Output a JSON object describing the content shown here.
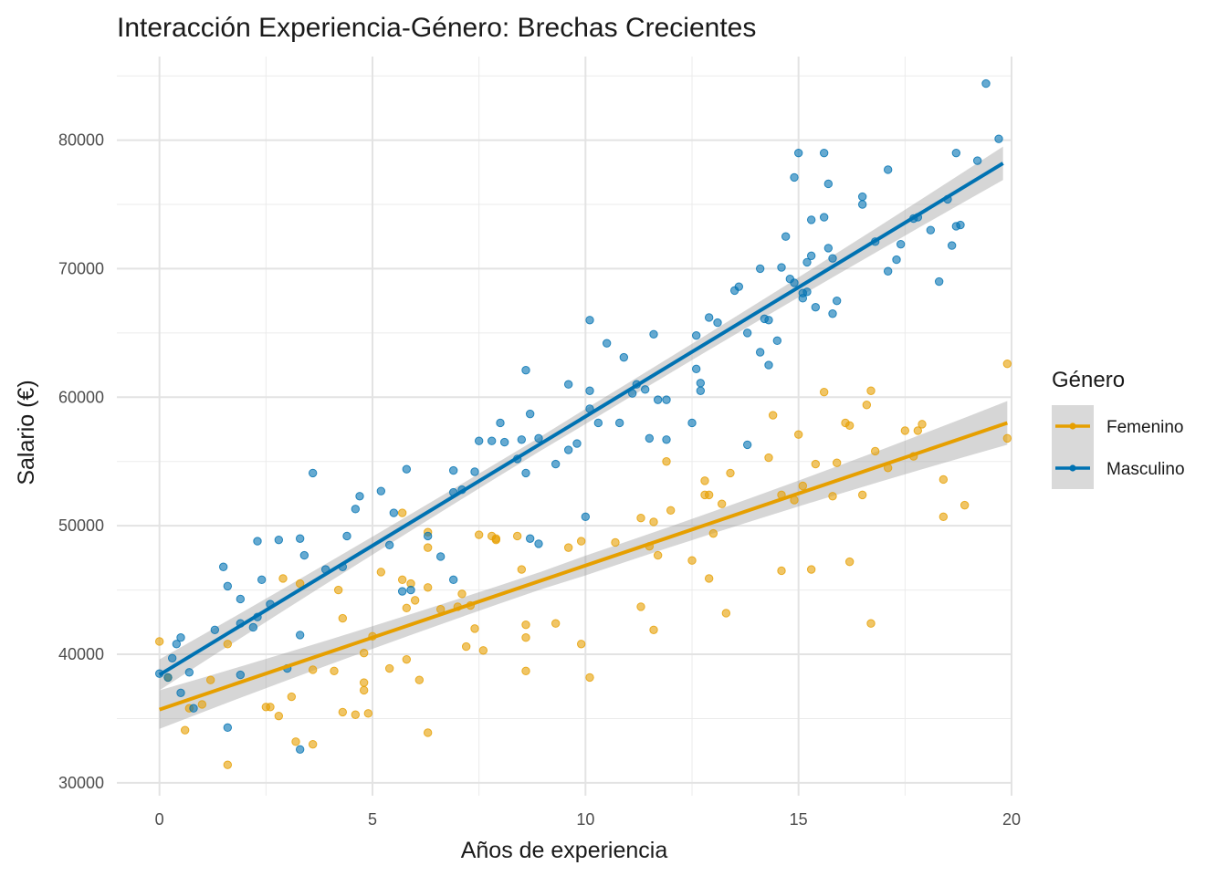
{
  "chart_data": {
    "type": "scatter",
    "title": "Interacción Experiencia-Género: Brechas Crecientes",
    "xlabel": "Años de experiencia",
    "ylabel": "Salario (€)",
    "xlim": [
      -1,
      20
    ],
    "ylim": [
      29000,
      86500
    ],
    "x_ticks": [
      0,
      5,
      10,
      15,
      20
    ],
    "y_ticks": [
      30000,
      40000,
      50000,
      60000,
      70000,
      80000
    ],
    "x_tick_labels": [
      "0",
      "5",
      "10",
      "15",
      "20"
    ],
    "y_tick_labels": [
      "30000",
      "40000",
      "50000",
      "60000",
      "70000",
      "80000"
    ],
    "grid": true,
    "legend": {
      "title": "Género",
      "position": "right",
      "entries": [
        "Femenino",
        "Masculino"
      ]
    },
    "series": [
      {
        "name": "Femenino",
        "color": "#E69F00",
        "trend": {
          "x": [
            0,
            19.9
          ],
          "y": [
            35700,
            58000
          ],
          "ci_start": [
            34200,
            37200
          ],
          "ci_end": [
            56300,
            59700
          ]
        },
        "points": [
          [
            0,
            41000
          ],
          [
            0.2,
            38200
          ],
          [
            0.6,
            34100
          ],
          [
            0.7,
            35800
          ],
          [
            1,
            36100
          ],
          [
            1.2,
            38000
          ],
          [
            1.6,
            31400
          ],
          [
            1.6,
            40800
          ],
          [
            2.5,
            35900
          ],
          [
            2.6,
            35900
          ],
          [
            2.8,
            35200
          ],
          [
            2.9,
            45900
          ],
          [
            3.1,
            36700
          ],
          [
            3.2,
            33200
          ],
          [
            3.3,
            45500
          ],
          [
            3.6,
            33000
          ],
          [
            3.6,
            38800
          ],
          [
            4.1,
            38700
          ],
          [
            4.2,
            45000
          ],
          [
            4.3,
            42800
          ],
          [
            4.3,
            35500
          ],
          [
            4.6,
            35300
          ],
          [
            4.8,
            40100
          ],
          [
            4.8,
            37800
          ],
          [
            4.8,
            37200
          ],
          [
            4.9,
            35400
          ],
          [
            5,
            41400
          ],
          [
            5.2,
            46400
          ],
          [
            5.4,
            38900
          ],
          [
            5.7,
            45800
          ],
          [
            5.7,
            51000
          ],
          [
            5.8,
            43600
          ],
          [
            5.8,
            39600
          ],
          [
            5.9,
            45500
          ],
          [
            6,
            44200
          ],
          [
            6.1,
            38000
          ],
          [
            6.3,
            49500
          ],
          [
            6.3,
            48300
          ],
          [
            6.3,
            45200
          ],
          [
            6.3,
            33900
          ],
          [
            6.6,
            43500
          ],
          [
            7,
            43700
          ],
          [
            7.1,
            44700
          ],
          [
            7.2,
            40600
          ],
          [
            7.3,
            43800
          ],
          [
            7.4,
            42000
          ],
          [
            7.5,
            49300
          ],
          [
            7.6,
            40300
          ],
          [
            7.8,
            49200
          ],
          [
            7.9,
            49000
          ],
          [
            7.9,
            48900
          ],
          [
            8.4,
            49200
          ],
          [
            8.5,
            46600
          ],
          [
            8.6,
            42300
          ],
          [
            8.6,
            41300
          ],
          [
            8.6,
            38700
          ],
          [
            9.3,
            42400
          ],
          [
            9.6,
            48300
          ],
          [
            9.9,
            48800
          ],
          [
            9.9,
            40800
          ],
          [
            10.1,
            38200
          ],
          [
            10.7,
            48700
          ],
          [
            11.3,
            50600
          ],
          [
            11.3,
            43700
          ],
          [
            11.5,
            48400
          ],
          [
            11.6,
            50300
          ],
          [
            11.6,
            41900
          ],
          [
            11.7,
            47700
          ],
          [
            11.9,
            55000
          ],
          [
            12,
            51200
          ],
          [
            12.5,
            47300
          ],
          [
            12.8,
            52400
          ],
          [
            12.8,
            53500
          ],
          [
            12.9,
            52400
          ],
          [
            12.9,
            45900
          ],
          [
            13,
            49400
          ],
          [
            13.2,
            51700
          ],
          [
            13.3,
            43200
          ],
          [
            13.4,
            54100
          ],
          [
            14.3,
            55300
          ],
          [
            14.4,
            58600
          ],
          [
            14.6,
            52400
          ],
          [
            14.6,
            46500
          ],
          [
            14.9,
            52000
          ],
          [
            15,
            57100
          ],
          [
            15.1,
            53100
          ],
          [
            15.3,
            46600
          ],
          [
            15.4,
            54800
          ],
          [
            15.6,
            60400
          ],
          [
            15.8,
            52300
          ],
          [
            15.9,
            54900
          ],
          [
            16.1,
            58000
          ],
          [
            16.2,
            57800
          ],
          [
            16.2,
            47200
          ],
          [
            16.5,
            52400
          ],
          [
            16.6,
            59400
          ],
          [
            16.7,
            60500
          ],
          [
            16.7,
            42400
          ],
          [
            16.8,
            55800
          ],
          [
            17.1,
            54500
          ],
          [
            17.5,
            57400
          ],
          [
            17.7,
            55400
          ],
          [
            17.8,
            57400
          ],
          [
            17.9,
            57900
          ],
          [
            18.4,
            53600
          ],
          [
            18.4,
            50700
          ],
          [
            18.9,
            51600
          ],
          [
            19.9,
            56800
          ],
          [
            19.9,
            62600
          ]
        ]
      },
      {
        "name": "Masculino",
        "color": "#0072B2",
        "trend": {
          "x": [
            0,
            19.8
          ],
          "y": [
            38400,
            78200
          ],
          "ci_start": [
            37200,
            39600
          ],
          "ci_end": [
            77000,
            79600
          ]
        },
        "points": [
          [
            0,
            38500
          ],
          [
            0.2,
            38200
          ],
          [
            0.3,
            39700
          ],
          [
            0.4,
            40800
          ],
          [
            0.5,
            41300
          ],
          [
            0.5,
            37000
          ],
          [
            0.7,
            38600
          ],
          [
            0.8,
            35800
          ],
          [
            1.3,
            41900
          ],
          [
            1.5,
            46800
          ],
          [
            1.6,
            45300
          ],
          [
            1.6,
            34300
          ],
          [
            1.9,
            44300
          ],
          [
            1.9,
            42400
          ],
          [
            1.9,
            38400
          ],
          [
            2.2,
            42100
          ],
          [
            2.3,
            42900
          ],
          [
            2.3,
            48800
          ],
          [
            2.4,
            45800
          ],
          [
            2.6,
            43900
          ],
          [
            2.8,
            48900
          ],
          [
            3.0,
            38900
          ],
          [
            3.3,
            49000
          ],
          [
            3.3,
            41500
          ],
          [
            3.3,
            32600
          ],
          [
            3.4,
            47700
          ],
          [
            3.6,
            54100
          ],
          [
            3.9,
            46600
          ],
          [
            4.3,
            46800
          ],
          [
            4.4,
            49200
          ],
          [
            4.6,
            51300
          ],
          [
            4.7,
            52300
          ],
          [
            5.2,
            52700
          ],
          [
            5.4,
            48500
          ],
          [
            5.5,
            51000
          ],
          [
            5.7,
            44900
          ],
          [
            5.8,
            54400
          ],
          [
            5.9,
            45000
          ],
          [
            6.3,
            49200
          ],
          [
            6.6,
            47600
          ],
          [
            6.9,
            54300
          ],
          [
            6.9,
            52600
          ],
          [
            6.9,
            45800
          ],
          [
            7.1,
            52800
          ],
          [
            7.4,
            54200
          ],
          [
            7.5,
            56600
          ],
          [
            7.8,
            56600
          ],
          [
            8.0,
            58000
          ],
          [
            8.1,
            56500
          ],
          [
            8.4,
            55200
          ],
          [
            8.5,
            56700
          ],
          [
            8.6,
            62100
          ],
          [
            8.6,
            54100
          ],
          [
            8.7,
            58700
          ],
          [
            8.7,
            49000
          ],
          [
            8.9,
            48600
          ],
          [
            8.9,
            56800
          ],
          [
            9.3,
            54800
          ],
          [
            9.6,
            61000
          ],
          [
            9.6,
            55900
          ],
          [
            9.8,
            56400
          ],
          [
            10,
            50700
          ],
          [
            10.1,
            66000
          ],
          [
            10.1,
            60500
          ],
          [
            10.1,
            59100
          ],
          [
            10.3,
            58000
          ],
          [
            10.5,
            64200
          ],
          [
            10.8,
            58000
          ],
          [
            10.9,
            63100
          ],
          [
            11.1,
            60300
          ],
          [
            11.2,
            61000
          ],
          [
            11.4,
            60600
          ],
          [
            11.5,
            56800
          ],
          [
            11.6,
            64900
          ],
          [
            11.7,
            59800
          ],
          [
            11.9,
            59800
          ],
          [
            11.9,
            56700
          ],
          [
            12.5,
            58000
          ],
          [
            12.6,
            64800
          ],
          [
            12.6,
            62200
          ],
          [
            12.7,
            61100
          ],
          [
            12.7,
            60500
          ],
          [
            12.9,
            66200
          ],
          [
            13.1,
            65800
          ],
          [
            13.5,
            68300
          ],
          [
            13.6,
            68600
          ],
          [
            13.8,
            65000
          ],
          [
            13.8,
            56300
          ],
          [
            14.1,
            70000
          ],
          [
            14.1,
            63500
          ],
          [
            14.2,
            66100
          ],
          [
            14.3,
            66000
          ],
          [
            14.3,
            62500
          ],
          [
            14.5,
            64400
          ],
          [
            14.6,
            70100
          ],
          [
            14.7,
            72500
          ],
          [
            14.8,
            69200
          ],
          [
            14.9,
            68900
          ],
          [
            14.9,
            77100
          ],
          [
            15,
            79000
          ],
          [
            15.1,
            68100
          ],
          [
            15.1,
            67700
          ],
          [
            15.2,
            68200
          ],
          [
            15.2,
            70500
          ],
          [
            15.3,
            73800
          ],
          [
            15.3,
            71000
          ],
          [
            15.4,
            67000
          ],
          [
            15.6,
            79000
          ],
          [
            15.6,
            74000
          ],
          [
            15.7,
            76600
          ],
          [
            15.7,
            71600
          ],
          [
            15.8,
            70800
          ],
          [
            15.8,
            66500
          ],
          [
            15.9,
            67500
          ],
          [
            16.5,
            75600
          ],
          [
            16.5,
            75000
          ],
          [
            16.8,
            72100
          ],
          [
            17.1,
            77700
          ],
          [
            17.1,
            69800
          ],
          [
            17.3,
            70700
          ],
          [
            17.4,
            71900
          ],
          [
            17.7,
            73900
          ],
          [
            17.8,
            74000
          ],
          [
            18.1,
            73000
          ],
          [
            18.3,
            69000
          ],
          [
            18.5,
            75400
          ],
          [
            18.6,
            71800
          ],
          [
            18.7,
            79000
          ],
          [
            18.7,
            73300
          ],
          [
            18.8,
            73400
          ],
          [
            19.2,
            78400
          ],
          [
            19.4,
            84400
          ],
          [
            19.7,
            80100
          ]
        ]
      }
    ]
  }
}
